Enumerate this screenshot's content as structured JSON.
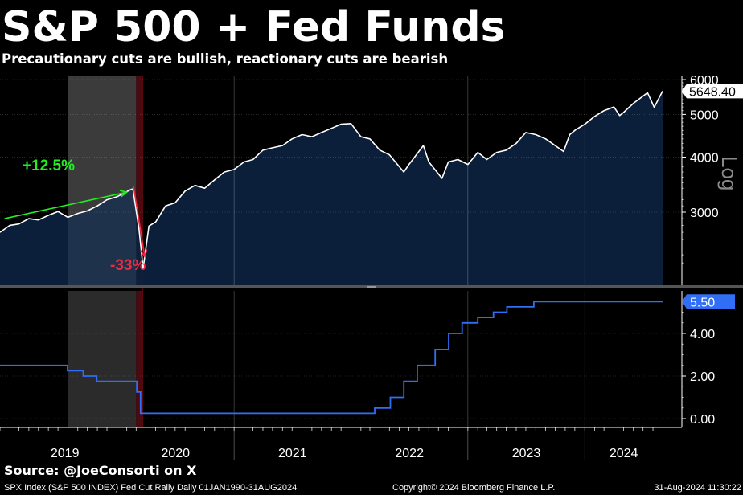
{
  "title": "S&P 500 + Fed Funds",
  "subtitle": "Precautionary cuts are bullish, reactionary cuts are bearish",
  "source": "Source: @JoeConsorti on X",
  "footer": {
    "left": "SPX Index (S&P 500 INDEX) Fed Cut Rally  Daily 01JAN1990-31AUG2024",
    "middle": "Copyright© 2024 Bloomberg Finance L.P.",
    "right": "31-Aug-2024 11:30:22"
  },
  "colors": {
    "spx_line": "#ffffff",
    "spx_fill": "#0c213d",
    "ff_line": "#2f6ef5",
    "precautionary_shade": "#2b2b2b",
    "reactionary_shade": "#4a0b10",
    "up_annotation": "#22ee22",
    "down_annotation": "#ee2a40"
  },
  "chart_data": [
    {
      "type": "area",
      "series": [
        {
          "name": "SPX Index (S&P 500 INDEX)",
          "points": [
            [
              "2019-01-01",
              2700
            ],
            [
              "2019-02-01",
              2800
            ],
            [
              "2019-03-01",
              2820
            ],
            [
              "2019-04-01",
              2900
            ],
            [
              "2019-05-01",
              2880
            ],
            [
              "2019-06-01",
              2950
            ],
            [
              "2019-07-01",
              3010
            ],
            [
              "2019-08-01",
              2920
            ],
            [
              "2019-09-01",
              2980
            ],
            [
              "2019-10-01",
              3020
            ],
            [
              "2019-11-01",
              3100
            ],
            [
              "2019-12-01",
              3200
            ],
            [
              "2020-01-01",
              3250
            ],
            [
              "2020-02-15",
              3380
            ],
            [
              "2020-02-20",
              3386
            ],
            [
              "2020-03-10",
              2750
            ],
            [
              "2020-03-23",
              2237
            ],
            [
              "2020-04-10",
              2790
            ],
            [
              "2020-05-01",
              2850
            ],
            [
              "2020-06-01",
              3100
            ],
            [
              "2020-07-01",
              3150
            ],
            [
              "2020-08-01",
              3350
            ],
            [
              "2020-09-01",
              3450
            ],
            [
              "2020-10-01",
              3400
            ],
            [
              "2020-11-01",
              3550
            ],
            [
              "2020-12-01",
              3700
            ],
            [
              "2021-01-01",
              3750
            ],
            [
              "2021-02-01",
              3900
            ],
            [
              "2021-03-01",
              3950
            ],
            [
              "2021-04-01",
              4150
            ],
            [
              "2021-05-01",
              4200
            ],
            [
              "2021-06-01",
              4250
            ],
            [
              "2021-07-01",
              4400
            ],
            [
              "2021-08-01",
              4500
            ],
            [
              "2021-09-01",
              4450
            ],
            [
              "2021-10-01",
              4550
            ],
            [
              "2021-11-01",
              4650
            ],
            [
              "2021-12-01",
              4750
            ],
            [
              "2022-01-01",
              4766
            ],
            [
              "2022-02-01",
              4450
            ],
            [
              "2022-03-01",
              4400
            ],
            [
              "2022-04-01",
              4150
            ],
            [
              "2022-05-01",
              4050
            ],
            [
              "2022-06-15",
              3700
            ],
            [
              "2022-07-01",
              3850
            ],
            [
              "2022-08-15",
              4250
            ],
            [
              "2022-09-01",
              3900
            ],
            [
              "2022-10-12",
              3580
            ],
            [
              "2022-11-01",
              3900
            ],
            [
              "2022-12-01",
              3950
            ],
            [
              "2023-01-01",
              3850
            ],
            [
              "2023-02-01",
              4100
            ],
            [
              "2023-03-01",
              3950
            ],
            [
              "2023-04-01",
              4100
            ],
            [
              "2023-05-01",
              4150
            ],
            [
              "2023-06-01",
              4300
            ],
            [
              "2023-07-01",
              4550
            ],
            [
              "2023-08-01",
              4500
            ],
            [
              "2023-09-01",
              4400
            ],
            [
              "2023-10-27",
              4120
            ],
            [
              "2023-11-15",
              4500
            ],
            [
              "2023-12-01",
              4600
            ],
            [
              "2024-01-01",
              4750
            ],
            [
              "2024-02-01",
              4950
            ],
            [
              "2024-03-01",
              5100
            ],
            [
              "2024-04-01",
              5200
            ],
            [
              "2024-04-19",
              4970
            ],
            [
              "2024-05-01",
              5050
            ],
            [
              "2024-06-01",
              5300
            ],
            [
              "2024-07-15",
              5600
            ],
            [
              "2024-08-05",
              5190
            ],
            [
              "2024-08-31",
              5648.4
            ]
          ]
        }
      ],
      "last_value_label": "5648.40",
      "scale_label": "Log",
      "yticks": [
        3000,
        4000,
        5000,
        6000
      ],
      "ytick_labels": [
        "3000",
        "4000",
        "5000",
        "6000"
      ],
      "yscale": "log",
      "annotations": [
        {
          "text": "+12.5%",
          "color": "up",
          "from": [
            "2019-01-15",
            2900
          ],
          "to": [
            "2020-02-01",
            3330
          ]
        },
        {
          "text": "-33%",
          "color": "down",
          "from": [
            "2020-02-22",
            3430
          ],
          "to": [
            "2020-03-28",
            2380
          ]
        }
      ],
      "shaded_periods": [
        {
          "label": "precautionary",
          "start": "2019-07-31",
          "end": "2020-03-01"
        },
        {
          "label": "reactionary",
          "start": "2020-03-01",
          "end": "2020-03-20"
        }
      ]
    },
    {
      "type": "line",
      "series": [
        {
          "name": "Fed Funds",
          "points": [
            [
              "2019-01-01",
              2.5
            ],
            [
              "2019-07-31",
              2.5
            ],
            [
              "2019-07-31",
              2.25
            ],
            [
              "2019-09-18",
              2.25
            ],
            [
              "2019-09-18",
              2.0
            ],
            [
              "2019-10-30",
              2.0
            ],
            [
              "2019-10-30",
              1.75
            ],
            [
              "2020-03-03",
              1.75
            ],
            [
              "2020-03-03",
              1.25
            ],
            [
              "2020-03-15",
              1.25
            ],
            [
              "2020-03-15",
              0.25
            ],
            [
              "2022-03-16",
              0.25
            ],
            [
              "2022-03-16",
              0.5
            ],
            [
              "2022-05-04",
              0.5
            ],
            [
              "2022-05-04",
              1.0
            ],
            [
              "2022-06-15",
              1.0
            ],
            [
              "2022-06-15",
              1.75
            ],
            [
              "2022-07-27",
              1.75
            ],
            [
              "2022-07-27",
              2.5
            ],
            [
              "2022-09-21",
              2.5
            ],
            [
              "2022-09-21",
              3.25
            ],
            [
              "2022-11-02",
              3.25
            ],
            [
              "2022-11-02",
              4.0
            ],
            [
              "2022-12-14",
              4.0
            ],
            [
              "2022-12-14",
              4.5
            ],
            [
              "2023-02-01",
              4.5
            ],
            [
              "2023-02-01",
              4.75
            ],
            [
              "2023-03-22",
              4.75
            ],
            [
              "2023-03-22",
              5.0
            ],
            [
              "2023-05-03",
              5.0
            ],
            [
              "2023-05-03",
              5.25
            ],
            [
              "2023-07-26",
              5.25
            ],
            [
              "2023-07-26",
              5.5
            ],
            [
              "2024-08-31",
              5.5
            ]
          ]
        }
      ],
      "last_value_label": "5.50",
      "yticks": [
        0,
        2,
        4
      ],
      "ytick_labels": [
        "0.00",
        "2.00",
        "4.00"
      ]
    }
  ],
  "x_axis": {
    "years": [
      "2019",
      "2020",
      "2021",
      "2022",
      "2023",
      "2024"
    ],
    "start": "2019-01-01",
    "end": "2024-08-31"
  }
}
